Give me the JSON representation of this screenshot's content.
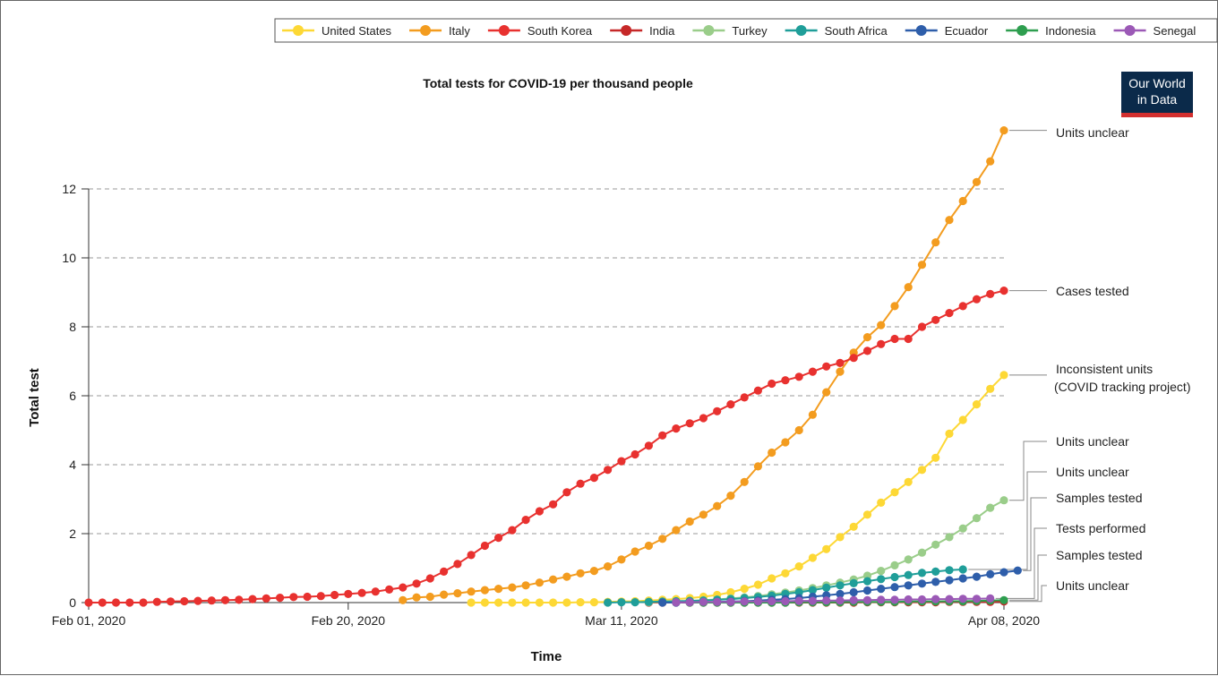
{
  "chart_data": {
    "type": "line",
    "title": "Total tests for COVID-19 per thousand people",
    "xlabel": "Time",
    "ylabel": "Total test",
    "x_range": [
      "2020-02-01",
      "2020-04-08"
    ],
    "ylim": [
      0,
      13.8
    ],
    "y_ticks": [
      0,
      2,
      4,
      6,
      8,
      10,
      12
    ],
    "x_ticks": [
      {
        "date": "2020-02-01",
        "label": "Feb 01, 2020"
      },
      {
        "date": "2020-02-20",
        "label": "Feb 20, 2020"
      },
      {
        "date": "2020-03-11",
        "label": "Mar 11, 2020"
      },
      {
        "date": "2020-04-08",
        "label": "Apr 08, 2020"
      }
    ],
    "grid": "horizontal dashed",
    "legend_position": "top",
    "series": [
      {
        "name": "United States",
        "color": "#FDD835",
        "start": "2020-02-29",
        "values": [
          0,
          0,
          0,
          0,
          0,
          0,
          0,
          0,
          0.01,
          0.01,
          0.02,
          0.03,
          0.04,
          0.06,
          0.08,
          0.1,
          0.13,
          0.17,
          0.22,
          0.3,
          0.4,
          0.52,
          0.7,
          0.85,
          1.05,
          1.3,
          1.55,
          1.9,
          2.2,
          2.55,
          2.9,
          3.2,
          3.5,
          3.85,
          4.2,
          4.9,
          5.3,
          5.75,
          6.2,
          6.6
        ]
      },
      {
        "name": "Italy",
        "color": "#F39C1F",
        "start": "2020-02-24",
        "values": [
          0.07,
          0.15,
          0.17,
          0.23,
          0.27,
          0.32,
          0.36,
          0.4,
          0.44,
          0.5,
          0.58,
          0.67,
          0.75,
          0.85,
          0.92,
          1.05,
          1.25,
          1.48,
          1.65,
          1.85,
          2.1,
          2.35,
          2.55,
          2.8,
          3.1,
          3.5,
          3.95,
          4.35,
          4.65,
          5.0,
          5.45,
          6.1,
          6.7,
          7.25,
          7.7,
          8.05,
          8.6,
          9.15,
          9.8,
          10.45,
          11.1,
          11.65,
          12.2,
          12.8,
          13.7
        ]
      },
      {
        "name": "South Korea",
        "color": "#E8312F",
        "start": "2020-02-01",
        "values": [
          0,
          0,
          0,
          0,
          0,
          0.02,
          0.03,
          0.04,
          0.05,
          0.06,
          0.07,
          0.08,
          0.1,
          0.12,
          0.14,
          0.16,
          0.17,
          0.19,
          0.22,
          0.25,
          0.28,
          0.32,
          0.38,
          0.44,
          0.55,
          0.7,
          0.9,
          1.12,
          1.38,
          1.65,
          1.88,
          2.1,
          2.4,
          2.65,
          2.85,
          3.2,
          3.45,
          3.62,
          3.85,
          4.1,
          4.3,
          4.55,
          4.85,
          5.05,
          5.2,
          5.35,
          5.55,
          5.75,
          5.95,
          6.15,
          6.35,
          6.45,
          6.55,
          6.7,
          6.85,
          6.95,
          7.1,
          7.3,
          7.5,
          7.65,
          7.65,
          8.0,
          8.2,
          8.4,
          8.6,
          8.8,
          8.95,
          9.05
        ]
      },
      {
        "name": "India",
        "color": "#C62828",
        "start": "2020-03-13",
        "values": [
          0,
          0,
          0,
          0,
          0,
          0,
          0,
          0,
          0,
          0,
          0,
          0,
          0,
          0,
          0,
          0,
          0.01,
          0.01,
          0.01,
          0.01,
          0.01,
          0.01,
          0.02,
          0.02,
          0.02,
          0.02,
          0.03
        ]
      },
      {
        "name": "Turkey",
        "color": "#9ACD8A",
        "start": "2020-03-13",
        "values": [
          0.01,
          0.02,
          0.03,
          0.05,
          0.07,
          0.09,
          0.12,
          0.15,
          0.19,
          0.24,
          0.29,
          0.35,
          0.42,
          0.5,
          0.58,
          0.67,
          0.78,
          0.92,
          1.08,
          1.25,
          1.45,
          1.68,
          1.9,
          2.15,
          2.45,
          2.75,
          2.97
        ]
      },
      {
        "name": "South Africa",
        "color": "#1F9E99",
        "start": "2020-03-10",
        "values": [
          0,
          0.01,
          0.01,
          0.02,
          0.03,
          0.04,
          0.05,
          0.06,
          0.08,
          0.1,
          0.13,
          0.16,
          0.2,
          0.25,
          0.3,
          0.36,
          0.43,
          0.5,
          0.56,
          0.62,
          0.68,
          0.74,
          0.8,
          0.86,
          0.9,
          0.94,
          0.96
        ]
      },
      {
        "name": "Ecuador",
        "color": "#2E5EAA",
        "start": "2020-03-14",
        "values": [
          0,
          0,
          0.01,
          0.01,
          0.02,
          0.03,
          0.04,
          0.06,
          0.08,
          0.1,
          0.13,
          0.17,
          0.21,
          0.25,
          0.3,
          0.35,
          0.4,
          0.45,
          0.5,
          0.55,
          0.6,
          0.65,
          0.7,
          0.75,
          0.82,
          0.88,
          0.93
        ]
      },
      {
        "name": "Indonesia",
        "color": "#2E9E4F",
        "start": "2020-03-16",
        "values": [
          0,
          0,
          0,
          0,
          0,
          0,
          0,
          0,
          0.01,
          0.01,
          0.01,
          0.01,
          0.02,
          0.02,
          0.02,
          0.02,
          0.03,
          0.03,
          0.03,
          0.04,
          0.04,
          0.05,
          0.06,
          0.07
        ]
      },
      {
        "name": "Senegal",
        "color": "#9B59B6",
        "start": "2020-03-15",
        "values": [
          0.01,
          0.01,
          0.02,
          0.02,
          0.02,
          0.03,
          0.03,
          0.04,
          0.04,
          0.05,
          0.05,
          0.06,
          0.06,
          0.07,
          0.07,
          0.08,
          0.08,
          0.09,
          0.09,
          0.1,
          0.1,
          0.11,
          0.11,
          0.12
        ]
      }
    ],
    "annotations": [
      {
        "text": "Units unclear",
        "series": "Italy"
      },
      {
        "text": "Cases tested",
        "series": "South Korea"
      },
      {
        "text": "Inconsistent units",
        "text2": "(COVID tracking project)",
        "series": "United States"
      },
      {
        "text": "Units unclear",
        "series": "Turkey"
      },
      {
        "text": "Units unclear",
        "series": "South Africa"
      },
      {
        "text": "Samples tested",
        "series": "Ecuador"
      },
      {
        "text": "Tests performed",
        "series": "Senegal"
      },
      {
        "text": "Samples tested",
        "series": "Indonesia"
      },
      {
        "text": "Units unclear",
        "series": "India"
      }
    ]
  },
  "brand": {
    "line1": "Our World",
    "line2": "in Data",
    "bg_color": "#0B2A4A",
    "accent_color": "#D32F2F"
  }
}
